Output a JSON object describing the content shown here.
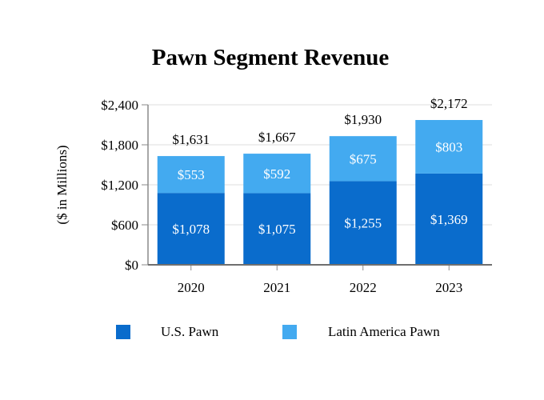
{
  "chart_data": {
    "type": "bar",
    "stacked": true,
    "title": "Pawn Segment Revenue",
    "ylabel": "($ in Millions)",
    "xlabel": "",
    "categories": [
      "2020",
      "2021",
      "2022",
      "2023"
    ],
    "series": [
      {
        "name": "U.S. Pawn",
        "color": "#0a6ccc",
        "values": [
          1078,
          1075,
          1255,
          1369
        ],
        "labels": [
          "$1,078",
          "$1,075",
          "$1,255",
          "$1,369"
        ]
      },
      {
        "name": "Latin America Pawn",
        "color": "#43aaf0",
        "values": [
          553,
          592,
          675,
          803
        ],
        "labels": [
          "$553",
          "$592",
          "$675",
          "$803"
        ]
      }
    ],
    "totals": [
      1631,
      1667,
      1930,
      2172
    ],
    "total_labels": [
      "$1,631",
      "$1,667",
      "$1,930",
      "$2,172"
    ],
    "ylim": [
      0,
      2400
    ],
    "yticks": [
      0,
      600,
      1200,
      1800,
      2400
    ],
    "ytick_labels": [
      "$0",
      "$600",
      "$1,200",
      "$1,800",
      "$2,400"
    ],
    "grid": true,
    "legend_position": "bottom"
  }
}
